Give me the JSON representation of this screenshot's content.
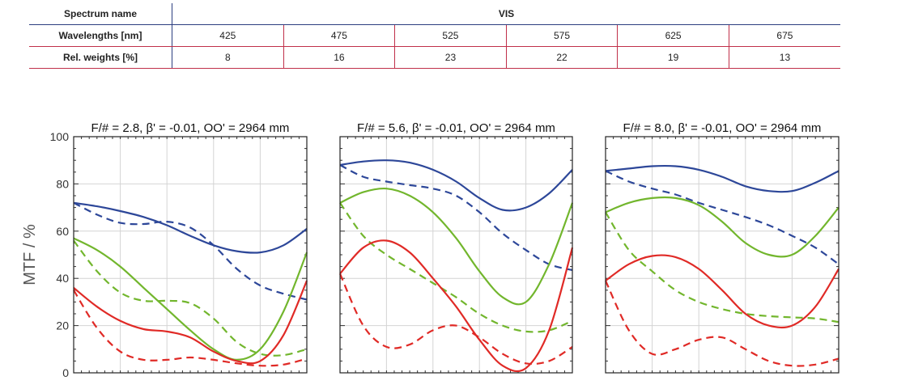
{
  "spec_table": {
    "spectrum_label": "Spectrum name",
    "spectrum_value": "VIS",
    "wavelengths_label": "Wavelengths [nm]",
    "weights_label": "Rel. weights [%]",
    "wavelengths": [
      "425",
      "475",
      "525",
      "575",
      "625",
      "675"
    ],
    "weights": [
      "8",
      "16",
      "23",
      "22",
      "19",
      "13"
    ]
  },
  "ylabel": "MTF / %",
  "yticks": [
    "0",
    "20",
    "40",
    "60",
    "80",
    "100"
  ],
  "colors": {
    "blue": "#2d4799",
    "green": "#72b62d",
    "red": "#e02a26"
  },
  "chart_data": [
    {
      "type": "line",
      "title": "F/# = 2.8, β' = -0.01, OO' = 2964 mm",
      "ylim": [
        0,
        100
      ],
      "x": [
        0,
        1,
        2,
        3,
        4,
        5,
        6,
        7,
        8,
        9,
        10
      ],
      "series": [
        {
          "color": "blue",
          "dash": "solid",
          "values": [
            72,
            70.5,
            68.5,
            66,
            62.5,
            58,
            54,
            51.5,
            51,
            54,
            61
          ]
        },
        {
          "color": "blue",
          "dash": "dashed",
          "values": [
            72,
            67,
            63.5,
            63,
            64,
            61.5,
            54,
            44,
            37,
            33.5,
            31
          ]
        },
        {
          "color": "green",
          "dash": "solid",
          "values": [
            57,
            52,
            45,
            36,
            27,
            18,
            10,
            5.5,
            10,
            26,
            51
          ]
        },
        {
          "color": "green",
          "dash": "dashed",
          "values": [
            56,
            43,
            34,
            30.5,
            30.5,
            29.5,
            23,
            13,
            8,
            7.5,
            10
          ]
        },
        {
          "color": "red",
          "dash": "solid",
          "values": [
            36,
            28,
            22,
            18.5,
            17.5,
            15,
            9,
            5,
            5,
            16,
            39
          ]
        },
        {
          "color": "red",
          "dash": "dashed",
          "values": [
            35,
            19,
            9,
            5.5,
            5.5,
            6.5,
            5.5,
            4,
            3,
            3.5,
            6
          ]
        }
      ]
    },
    {
      "type": "line",
      "title": "F/# = 5.6, β' = -0.01, OO' = 2964 mm",
      "ylim": [
        0,
        100
      ],
      "x": [
        0,
        1,
        2,
        3,
        4,
        5,
        6,
        7,
        8,
        9,
        10
      ],
      "series": [
        {
          "color": "blue",
          "dash": "solid",
          "values": [
            88,
            89.5,
            90,
            89,
            86,
            81,
            74,
            69,
            70,
            76,
            86
          ]
        },
        {
          "color": "blue",
          "dash": "dashed",
          "values": [
            88,
            83,
            81,
            79.5,
            78,
            75,
            68,
            59,
            52,
            46,
            43.5
          ]
        },
        {
          "color": "green",
          "dash": "solid",
          "values": [
            72,
            76.5,
            78,
            75,
            68,
            57,
            43,
            32,
            30,
            46,
            72
          ]
        },
        {
          "color": "green",
          "dash": "dashed",
          "values": [
            72,
            58,
            50,
            44,
            38,
            32,
            25,
            20,
            17.5,
            18,
            22
          ]
        },
        {
          "color": "red",
          "dash": "solid",
          "values": [
            42,
            53,
            56,
            51,
            40,
            28,
            14,
            3,
            2,
            18,
            53
          ]
        },
        {
          "color": "red",
          "dash": "dashed",
          "values": [
            42,
            20,
            11,
            12,
            18,
            20,
            15,
            8,
            4,
            5,
            11
          ]
        }
      ]
    },
    {
      "type": "line",
      "title": "F/# = 8.0, β' = -0.01, OO' = 2964 mm",
      "ylim": [
        0,
        100
      ],
      "x": [
        0,
        1,
        2,
        3,
        4,
        5,
        6,
        7,
        8,
        9,
        10
      ],
      "series": [
        {
          "color": "blue",
          "dash": "solid",
          "values": [
            85.5,
            86.5,
            87.5,
            87.5,
            86,
            83,
            79,
            77,
            77,
            80.5,
            85.5
          ]
        },
        {
          "color": "blue",
          "dash": "dashed",
          "values": [
            85.5,
            81,
            78,
            75.5,
            72,
            69,
            66,
            62.5,
            58,
            53,
            46
          ]
        },
        {
          "color": "green",
          "dash": "solid",
          "values": [
            68,
            72,
            74,
            74,
            71,
            64,
            55,
            50,
            50,
            58,
            70
          ]
        },
        {
          "color": "green",
          "dash": "dashed",
          "values": [
            68,
            52,
            43,
            35,
            30,
            27,
            25,
            24,
            23.5,
            23,
            21.5
          ]
        },
        {
          "color": "red",
          "dash": "solid",
          "values": [
            39,
            46,
            49.5,
            49,
            44,
            35,
            25,
            20,
            20,
            28,
            44
          ]
        },
        {
          "color": "red",
          "dash": "dashed",
          "values": [
            39,
            18,
            8,
            10,
            14,
            15,
            10,
            5,
            3,
            3.5,
            6
          ]
        }
      ]
    }
  ]
}
